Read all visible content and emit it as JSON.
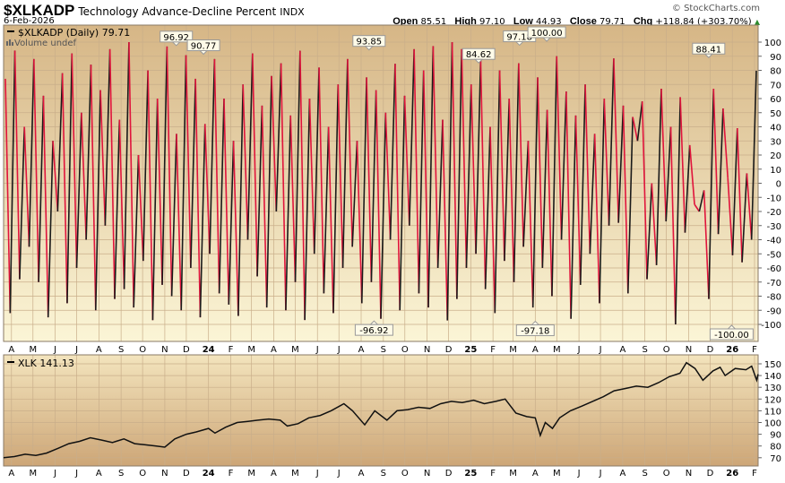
{
  "header": {
    "symbol": "$XLKADP",
    "name": "Technology Advance-Decline Percent",
    "exchange": "INDX",
    "date": "6-Feb-2026",
    "copyright": "© StockCharts.com",
    "open_label": "Open",
    "open": "85.51",
    "high_label": "High",
    "high": "97.10",
    "low_label": "Low",
    "low": "44.93",
    "close_label": "Close",
    "close": "79.71",
    "chg_label": "Chg",
    "chg": "+118.84 (+303.70%)",
    "chg_icon": "triangle-up-icon"
  },
  "chart_data": [
    {
      "type": "line",
      "legend": "$XLKADP (Daily) 79.71",
      "volume_note": "Volume undef",
      "colors": {
        "rising": "#1a1a1a",
        "falling": "#e0143c",
        "bg_top": "#d6b686",
        "bg_bottom": "#fbf5d6"
      },
      "x_range": [
        "2023-03-21",
        "2026-02-06"
      ],
      "ylim": [
        -110,
        110
      ],
      "yticks": [
        100,
        90,
        80,
        70,
        60,
        50,
        40,
        30,
        20,
        10,
        0,
        -10,
        -20,
        -30,
        -40,
        -50,
        -60,
        -70,
        -80,
        -90,
        -100
      ],
      "xticks": [
        {
          "label": "A",
          "date": "2023-04-01"
        },
        {
          "label": "M",
          "date": "2023-05-01"
        },
        {
          "label": "J",
          "date": "2023-06-01"
        },
        {
          "label": "J",
          "date": "2023-07-01"
        },
        {
          "label": "A",
          "date": "2023-08-01"
        },
        {
          "label": "S",
          "date": "2023-09-01"
        },
        {
          "label": "O",
          "date": "2023-10-01"
        },
        {
          "label": "N",
          "date": "2023-11-01"
        },
        {
          "label": "D",
          "date": "2023-12-01"
        },
        {
          "label": "24",
          "date": "2024-01-01",
          "bold": true
        },
        {
          "label": "F",
          "date": "2024-02-01"
        },
        {
          "label": "M",
          "date": "2024-03-01"
        },
        {
          "label": "A",
          "date": "2024-04-01"
        },
        {
          "label": "M",
          "date": "2024-05-01"
        },
        {
          "label": "J",
          "date": "2024-06-01"
        },
        {
          "label": "J",
          "date": "2024-07-01"
        },
        {
          "label": "A",
          "date": "2024-08-01"
        },
        {
          "label": "S",
          "date": "2024-09-01"
        },
        {
          "label": "O",
          "date": "2024-10-01"
        },
        {
          "label": "N",
          "date": "2024-11-01"
        },
        {
          "label": "D",
          "date": "2024-12-01"
        },
        {
          "label": "25",
          "date": "2025-01-01",
          "bold": true
        },
        {
          "label": "F",
          "date": "2025-02-01"
        },
        {
          "label": "M",
          "date": "2025-03-01"
        },
        {
          "label": "A",
          "date": "2025-04-01"
        },
        {
          "label": "M",
          "date": "2025-05-01"
        },
        {
          "label": "J",
          "date": "2025-06-01"
        },
        {
          "label": "J",
          "date": "2025-07-01"
        },
        {
          "label": "A",
          "date": "2025-08-01"
        },
        {
          "label": "S",
          "date": "2025-09-01"
        },
        {
          "label": "O",
          "date": "2025-10-01"
        },
        {
          "label": "N",
          "date": "2025-11-01"
        },
        {
          "label": "D",
          "date": "2025-12-01"
        },
        {
          "label": "26",
          "date": "2026-01-01",
          "bold": true
        },
        {
          "label": "F",
          "date": "2026-02-01"
        }
      ],
      "values": [
        74,
        -92,
        94,
        -68,
        40,
        -45,
        88,
        -70,
        62,
        -95,
        30,
        -20,
        78,
        -85,
        92,
        -60,
        50,
        -40,
        84,
        -90,
        66,
        -30,
        95,
        -82,
        45,
        -75,
        100,
        -88,
        20,
        -55,
        80,
        -97,
        60,
        -72,
        96.92,
        -80,
        35,
        -90,
        90.77,
        -60,
        74,
        -95,
        42,
        -50,
        88,
        -78,
        60,
        -86,
        30,
        -94,
        70,
        -40,
        92,
        -66,
        55,
        -88,
        76,
        -20,
        85,
        -90,
        48,
        -70,
        93.85,
        -96.92,
        60,
        -50,
        82,
        -78,
        40,
        -92,
        70,
        -60,
        88,
        -45,
        30,
        -85,
        75,
        -70,
        66,
        -96,
        50,
        -40,
        84.62,
        -90,
        62,
        -30,
        95,
        -78,
        80,
        -88,
        97.18,
        -60,
        45,
        -97.18,
        100,
        -82,
        95,
        -60,
        70,
        -50,
        88,
        -75,
        40,
        -92,
        80,
        -55,
        60,
        -70,
        85,
        -45,
        30,
        -88,
        75,
        -60,
        52,
        -80,
        90,
        -40,
        65,
        -96,
        48,
        -72,
        70,
        -50,
        35,
        -85,
        60,
        -30,
        88.41,
        -28,
        55,
        -78,
        47,
        30,
        58,
        -68,
        0,
        -58,
        67,
        -27,
        40,
        -100,
        61,
        -35,
        27,
        -15,
        -20,
        -5,
        -82,
        67,
        -36,
        53,
        4,
        -51,
        39,
        -56,
        7,
        -40,
        79.71
      ],
      "annotations": [
        {
          "text": "96.92",
          "date": "2023-11-17",
          "value": 96.92,
          "side": "top"
        },
        {
          "text": "90.77",
          "date": "2023-12-25",
          "value": 90.77,
          "side": "top"
        },
        {
          "text": "93.85",
          "date": "2024-08-12",
          "value": 93.85,
          "side": "top"
        },
        {
          "text": "-96.92",
          "date": "2024-08-19",
          "value": -96.92,
          "side": "bottom"
        },
        {
          "text": "84.62",
          "date": "2025-01-12",
          "value": 84.62,
          "side": "top"
        },
        {
          "text": "97.18",
          "date": "2025-03-10",
          "value": 97.18,
          "side": "top"
        },
        {
          "text": "-97.18",
          "date": "2025-04-01",
          "value": -97.18,
          "side": "bottom"
        },
        {
          "text": "100.00",
          "date": "2025-04-17",
          "value": 100,
          "side": "top"
        },
        {
          "text": "88.41",
          "date": "2025-11-29",
          "value": 88.41,
          "side": "top"
        },
        {
          "text": "-100.00",
          "date": "2025-12-31",
          "value": -100,
          "side": "bottom"
        }
      ]
    },
    {
      "type": "line",
      "legend": "XLK 141.13",
      "colors": {
        "line": "#111111",
        "bg_top": "#f3e4bd",
        "bg_bottom": "#cda677"
      },
      "ylim": [
        65,
        155
      ],
      "yticks": [
        150,
        140,
        130,
        120,
        110,
        100,
        90,
        80,
        70
      ],
      "points": [
        [
          "2023-03-21",
          70
        ],
        [
          "2023-04-05",
          71
        ],
        [
          "2023-04-20",
          73
        ],
        [
          "2023-05-05",
          72
        ],
        [
          "2023-05-20",
          74
        ],
        [
          "2023-06-05",
          78
        ],
        [
          "2023-06-20",
          82
        ],
        [
          "2023-07-05",
          84
        ],
        [
          "2023-07-20",
          87
        ],
        [
          "2023-08-05",
          85
        ],
        [
          "2023-08-20",
          83
        ],
        [
          "2023-09-05",
          86
        ],
        [
          "2023-09-20",
          82
        ],
        [
          "2023-10-05",
          81
        ],
        [
          "2023-10-20",
          80
        ],
        [
          "2023-11-01",
          79
        ],
        [
          "2023-11-15",
          86
        ],
        [
          "2023-12-01",
          90
        ],
        [
          "2023-12-15",
          92
        ],
        [
          "2024-01-01",
          95
        ],
        [
          "2024-01-10",
          91
        ],
        [
          "2024-01-25",
          96
        ],
        [
          "2024-02-10",
          100
        ],
        [
          "2024-02-25",
          101
        ],
        [
          "2024-03-10",
          102
        ],
        [
          "2024-03-25",
          103
        ],
        [
          "2024-04-10",
          102
        ],
        [
          "2024-04-20",
          97
        ],
        [
          "2024-05-05",
          99
        ],
        [
          "2024-05-20",
          104
        ],
        [
          "2024-06-05",
          106
        ],
        [
          "2024-06-20",
          110
        ],
        [
          "2024-07-08",
          116
        ],
        [
          "2024-07-20",
          110
        ],
        [
          "2024-08-06",
          98
        ],
        [
          "2024-08-20",
          110
        ],
        [
          "2024-09-06",
          102
        ],
        [
          "2024-09-20",
          110
        ],
        [
          "2024-10-05",
          111
        ],
        [
          "2024-10-20",
          113
        ],
        [
          "2024-11-05",
          112
        ],
        [
          "2024-11-20",
          116
        ],
        [
          "2024-12-05",
          118
        ],
        [
          "2024-12-20",
          117
        ],
        [
          "2025-01-05",
          119
        ],
        [
          "2025-01-20",
          116
        ],
        [
          "2025-02-05",
          118
        ],
        [
          "2025-02-18",
          120
        ],
        [
          "2025-03-05",
          108
        ],
        [
          "2025-03-20",
          105
        ],
        [
          "2025-04-01",
          104
        ],
        [
          "2025-04-08",
          89
        ],
        [
          "2025-04-15",
          100
        ],
        [
          "2025-04-25",
          95
        ],
        [
          "2025-05-05",
          104
        ],
        [
          "2025-05-20",
          110
        ],
        [
          "2025-06-05",
          114
        ],
        [
          "2025-06-20",
          118
        ],
        [
          "2025-07-05",
          122
        ],
        [
          "2025-07-20",
          127
        ],
        [
          "2025-08-05",
          129
        ],
        [
          "2025-08-20",
          131
        ],
        [
          "2025-09-05",
          130
        ],
        [
          "2025-09-20",
          134
        ],
        [
          "2025-10-05",
          139
        ],
        [
          "2025-10-20",
          142
        ],
        [
          "2025-10-29",
          151
        ],
        [
          "2025-11-10",
          146
        ],
        [
          "2025-11-21",
          136
        ],
        [
          "2025-12-05",
          144
        ],
        [
          "2025-12-15",
          147
        ],
        [
          "2025-12-22",
          140
        ],
        [
          "2026-01-05",
          146
        ],
        [
          "2026-01-20",
          145
        ],
        [
          "2026-01-28",
          148
        ],
        [
          "2026-02-04",
          136
        ],
        [
          "2026-02-06",
          141.13
        ]
      ]
    }
  ]
}
